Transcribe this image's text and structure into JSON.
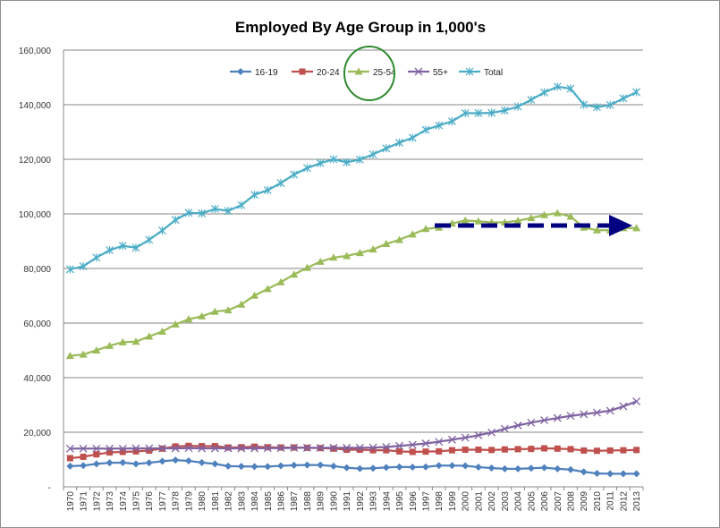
{
  "chart_data": {
    "type": "line",
    "title": "Employed By Age Group in 1,000's",
    "xlabel": "",
    "ylabel": "",
    "ylim": [
      0,
      160000
    ],
    "yticks": [
      0,
      20000,
      40000,
      60000,
      80000,
      100000,
      120000,
      140000,
      160000
    ],
    "ytick_labels": [
      "-",
      "20,000",
      "40,000",
      "60,000",
      "80,000",
      "100,000",
      "120,000",
      "140,000",
      "160,000"
    ],
    "grid": true,
    "legend_position": "top",
    "categories": [
      "1970",
      "1971",
      "1972",
      "1973",
      "1974",
      "1975",
      "1976",
      "1977",
      "1978",
      "1979",
      "1980",
      "1981",
      "1982",
      "1983",
      "1984",
      "1985",
      "1986",
      "1987",
      "1988",
      "1989",
      "1990",
      "1991",
      "1992",
      "1993",
      "1994",
      "1995",
      "1996",
      "1997",
      "1998",
      "1999",
      "2000",
      "2001",
      "2002",
      "2003",
      "2004",
      "2005",
      "2006",
      "2007",
      "2008",
      "2009",
      "2010",
      "2011",
      "2012",
      "2013"
    ],
    "series": [
      {
        "name": "16-19",
        "color": "#4f81bd",
        "marker": "diamond",
        "values": [
          7600,
          7800,
          8400,
          8800,
          8900,
          8400,
          8800,
          9400,
          9800,
          9500,
          8900,
          8400,
          7600,
          7500,
          7400,
          7400,
          7700,
          7900,
          8000,
          8000,
          7600,
          7000,
          6700,
          6800,
          7100,
          7300,
          7200,
          7300,
          7800,
          7800,
          7700,
          7200,
          6900,
          6600,
          6600,
          6800,
          7000,
          6600,
          6300,
          5500,
          4900,
          4800,
          4800,
          4800
        ]
      },
      {
        "name": "20-24",
        "color": "#c0504d",
        "marker": "square",
        "values": [
          10500,
          11000,
          11900,
          12600,
          12800,
          13000,
          13300,
          14000,
          14800,
          15000,
          14900,
          14900,
          14400,
          14500,
          14700,
          14500,
          14400,
          14400,
          14300,
          14200,
          14000,
          13600,
          13600,
          13400,
          13400,
          13000,
          12800,
          12900,
          13000,
          13400,
          13600,
          13600,
          13500,
          13700,
          13800,
          13900,
          14100,
          14000,
          13800,
          13300,
          13200,
          13300,
          13400,
          13500
        ]
      },
      {
        "name": "25-54",
        "color": "#9bbb59",
        "marker": "triangle",
        "values": [
          48000,
          48500,
          50000,
          51700,
          53000,
          53200,
          55100,
          56900,
          59500,
          61400,
          62500,
          64200,
          64700,
          66800,
          70100,
          72500,
          75000,
          77800,
          80300,
          82500,
          84000,
          84600,
          85700,
          87000,
          89000,
          90500,
          92500,
          94500,
          95000,
          96500,
          97600,
          97300,
          96900,
          96900,
          97500,
          98500,
          99600,
          100300,
          99000,
          95000,
          94000,
          94000,
          94800,
          94800
        ]
      },
      {
        "name": "55+",
        "color": "#8064a2",
        "marker": "x",
        "values": [
          14000,
          14000,
          14000,
          14000,
          14000,
          14100,
          14100,
          14100,
          14100,
          14200,
          14100,
          14100,
          14100,
          14100,
          14100,
          14200,
          14200,
          14300,
          14300,
          14300,
          14300,
          14300,
          14300,
          14400,
          14600,
          15000,
          15400,
          15900,
          16500,
          17300,
          18000,
          18900,
          19900,
          21300,
          22500,
          23500,
          24400,
          25200,
          26000,
          26600,
          27200,
          27900,
          29500,
          31300
        ]
      },
      {
        "name": "Total",
        "color": "#4bacc6",
        "marker": "star",
        "values": [
          79700,
          80800,
          84000,
          86700,
          88300,
          87600,
          90500,
          93900,
          97800,
          100400,
          100200,
          101800,
          101100,
          103200,
          107000,
          108700,
          111300,
          114400,
          116800,
          118600,
          120000,
          118900,
          119900,
          121800,
          124000,
          126100,
          127900,
          130800,
          132400,
          133900,
          136900,
          136900,
          137000,
          137900,
          139300,
          141800,
          144500,
          146600,
          145900,
          140000,
          139100,
          139900,
          142300,
          144600
        ]
      }
    ]
  }
}
